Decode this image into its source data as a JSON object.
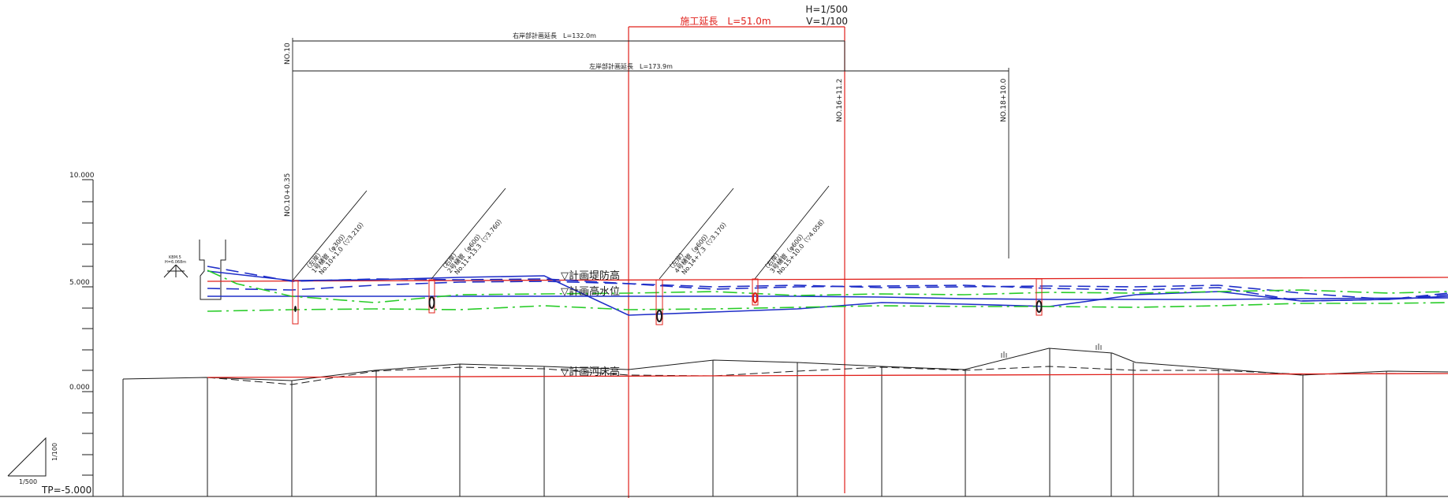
{
  "scale": {
    "h": "H=1/500",
    "v": "V=1/100"
  },
  "construction_length": "施工延長　L=51.0m",
  "right_bank_length": "右岸部計画延長　L=132.0m",
  "left_bank_length": "左岸部計画延長　L=173.9m",
  "stations": {
    "no10": "NO.10",
    "no10_035": "NO.10+0.35",
    "no16_112": "NO.16+11.2",
    "no18_100": "NO.18+10.0"
  },
  "elevation_ticks": [
    "10.000",
    "5.000",
    "0.000"
  ],
  "datum": "TP=-5.000",
  "slope_triangle": {
    "vertical": "1/100",
    "horizontal": "1/500"
  },
  "levee_labels": {
    "planned_levee_height": "▽計画堤防高",
    "planned_high_water": "▽計画高水位",
    "planned_riverbed": "▽計画河床高"
  },
  "bm": {
    "name": "KBM.5",
    "elev": "H=6.068m"
  },
  "pipes": [
    {
      "side": "（左岸）",
      "name": "1号樋管（φ300）",
      "detail": "No.10+1.0（▽3.210）"
    },
    {
      "side": "（右岸）",
      "name": "2号樋管（φ600）",
      "detail": "No.11+13.3（▽3.760）"
    },
    {
      "side": "（左岸）",
      "name": "4号樋管（φ600）",
      "detail": "No.14+7.3（▽3.170）"
    },
    {
      "side": "（右岸）",
      "name": "3号樋管（φ600）",
      "detail": "No.15+10.0（▽4.058）"
    }
  ],
  "colors": {
    "red": "#e0201b",
    "blue": "#1f2ec8",
    "green": "#29cc29",
    "black": "#1a1a1a"
  }
}
